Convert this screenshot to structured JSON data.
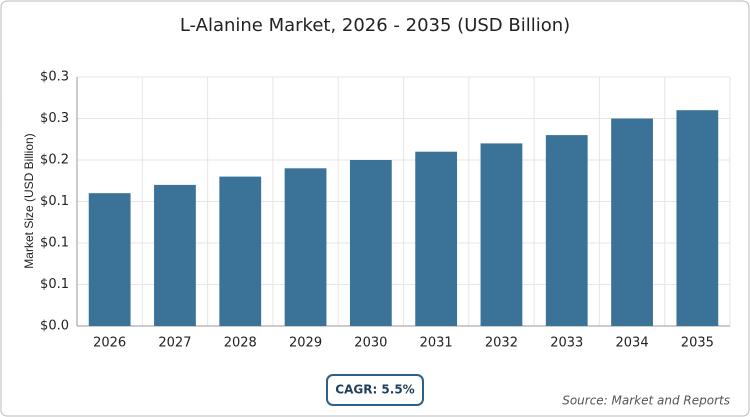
{
  "chart_data": {
    "type": "bar",
    "title": "L-Alanine Market, 2026 - 2035 (USD Billion)",
    "y_label": "Market Size (USD Billion)",
    "categories": [
      "2026",
      "2027",
      "2028",
      "2029",
      "2030",
      "2031",
      "2032",
      "2033",
      "2034",
      "2035"
    ],
    "values": [
      0.16,
      0.17,
      0.18,
      0.19,
      0.2,
      0.21,
      0.22,
      0.23,
      0.25,
      0.26
    ],
    "color": "#3b7398",
    "ylim": [
      0,
      0.3
    ],
    "yticks": [
      {
        "value": 0,
        "label": "$0.0"
      },
      {
        "value": 0.05,
        "label": "$0.1"
      },
      {
        "value": 0.1,
        "label": "$0.1"
      },
      {
        "value": 0.15,
        "label": "$0.1"
      },
      {
        "value": 0.2,
        "label": "$0.2"
      },
      {
        "value": 0.25,
        "label": "$0.3"
      },
      {
        "value": 0.3,
        "label": "$0.3"
      }
    ],
    "grid": true,
    "cagr": "CAGR: 5.5%",
    "source": "Source: Market and Reports"
  }
}
